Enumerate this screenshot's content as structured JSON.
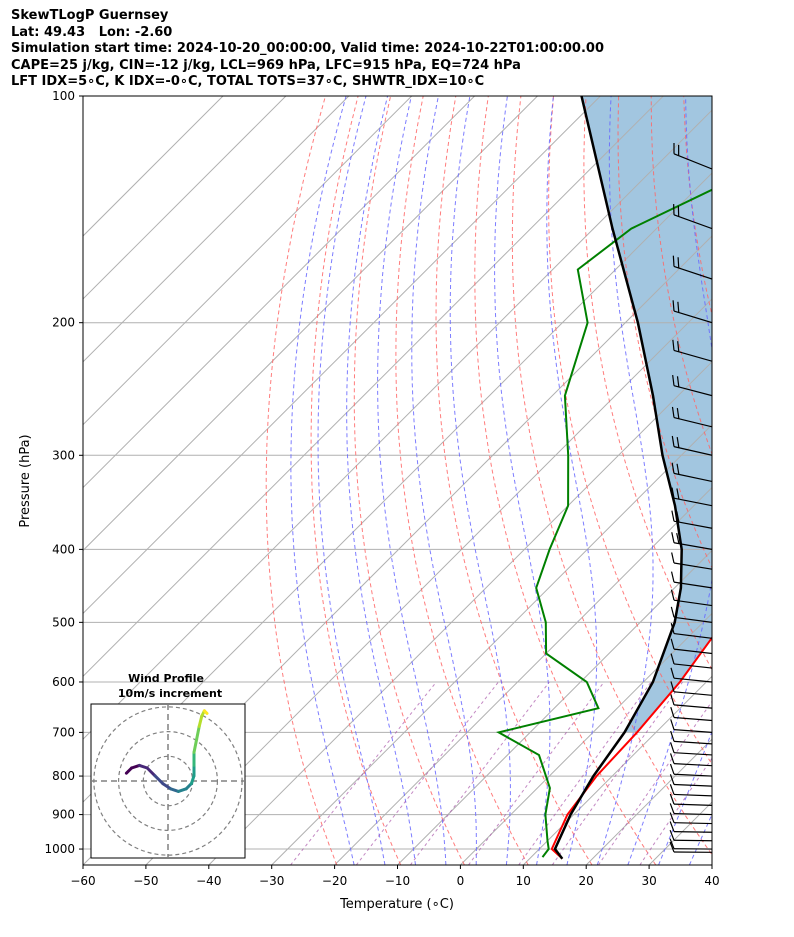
{
  "header": {
    "line1": "SkewTLogP Guernsey",
    "line2": "Lat: 49.43   Lon: -2.60",
    "line3": "Simulation start time: 2024-10-20_00:00:00, Valid time: 2024-10-22T01:00:00.00",
    "line4": "CAPE=25 j/kg, CIN=-12 j/kg, LCL=969 hPa, LFC=915 hPa, EQ=724 hPa",
    "line5": "LFT IDX=5∘C, K IDX=-0∘C, TOTAL TOTS=37∘C, SHWTR_IDX=10∘C"
  },
  "chart_data": {
    "type": "line",
    "subtype": "skew-T log-P",
    "xlabel": "Temperature (∘C)",
    "ylabel": "Pressure (hPa)",
    "xlim": [
      -60,
      40
    ],
    "ylim_hpa": [
      1050,
      100
    ],
    "y_scale": "log",
    "x_ticks": [
      "−60",
      "−50",
      "−40",
      "−30",
      "−20",
      "−10",
      "0",
      "10",
      "20",
      "30",
      "40"
    ],
    "x_tick_values": [
      -60,
      -50,
      -40,
      -30,
      -20,
      -10,
      0,
      10,
      20,
      30,
      40
    ],
    "y_ticks": [
      100,
      200,
      300,
      400,
      500,
      600,
      700,
      800,
      900,
      1000
    ],
    "grid": true,
    "colors": {
      "temperature": "#ff0000",
      "dewpoint": "#008000",
      "parcel": "#000000",
      "cape_fill": "#a2c6e0",
      "dry_adiabat": "#ff6666",
      "moist_adiabat": "#6666ff",
      "mixing_ratio": "#aa55aa",
      "isotherm": "#b0b0b0"
    },
    "series": [
      {
        "key": "temperature",
        "points": [
          [
            15.2,
            1030
          ],
          [
            12,
            1000
          ],
          [
            9,
            900
          ],
          [
            7.5,
            800
          ],
          [
            7,
            700
          ],
          [
            5.8,
            600
          ],
          [
            3.2,
            500
          ],
          [
            0.4,
            450
          ],
          [
            -3.5,
            400
          ],
          [
            -10,
            350
          ],
          [
            -15.5,
            300
          ],
          [
            -21,
            260
          ],
          [
            -30,
            200
          ],
          [
            -40,
            170
          ],
          [
            -44,
            150
          ],
          [
            -53,
            130
          ],
          [
            -62,
            100
          ]
        ]
      },
      {
        "key": "dewpoint",
        "points": [
          [
            11.8,
            1025
          ],
          [
            11.5,
            1000
          ],
          [
            10,
            975
          ],
          [
            5.5,
            900
          ],
          [
            2,
            830
          ],
          [
            -5,
            750
          ],
          [
            -15,
            700
          ],
          [
            -3,
            650
          ],
          [
            -9,
            600
          ],
          [
            -20,
            550
          ],
          [
            -25,
            500
          ],
          [
            -32,
            450
          ],
          [
            -36,
            400
          ],
          [
            -40,
            350
          ],
          [
            -48,
            300
          ],
          [
            -58,
            250
          ],
          [
            -66,
            200
          ],
          [
            -76,
            170
          ],
          [
            -74,
            150
          ],
          [
            -66,
            130
          ],
          [
            -56,
            100
          ]
        ]
      },
      {
        "key": "parcel",
        "points": [
          [
            15.2,
            1030
          ],
          [
            12.5,
            1000
          ],
          [
            9.5,
            900
          ],
          [
            7,
            800
          ],
          [
            5,
            700
          ],
          [
            1.5,
            600
          ],
          [
            -4.5,
            500
          ],
          [
            -9,
            450
          ],
          [
            -15,
            400
          ],
          [
            -23,
            350
          ],
          [
            -33,
            300
          ],
          [
            -44,
            250
          ],
          [
            -58,
            200
          ],
          [
            -77,
            150
          ],
          [
            -103,
            100
          ]
        ]
      }
    ],
    "wind_barbs": "35 barbs at pressure levels from 1025 to 100 hPa on the right side",
    "inset": {
      "title": "Wind Profile",
      "subtitle": "10m/s increment",
      "hodograph_points": [
        [
          -16,
          3
        ],
        [
          -14,
          5
        ],
        [
          -11,
          6
        ],
        [
          -8,
          5
        ],
        [
          -5,
          2
        ],
        [
          -2,
          -1
        ],
        [
          1,
          -3
        ],
        [
          4,
          -4
        ],
        [
          7,
          -3
        ],
        [
          9,
          -1
        ],
        [
          10,
          2
        ],
        [
          10,
          6
        ],
        [
          10,
          11
        ],
        [
          11,
          16
        ],
        [
          12,
          21
        ],
        [
          13,
          25
        ],
        [
          14,
          27
        ],
        [
          15,
          26
        ]
      ]
    }
  }
}
